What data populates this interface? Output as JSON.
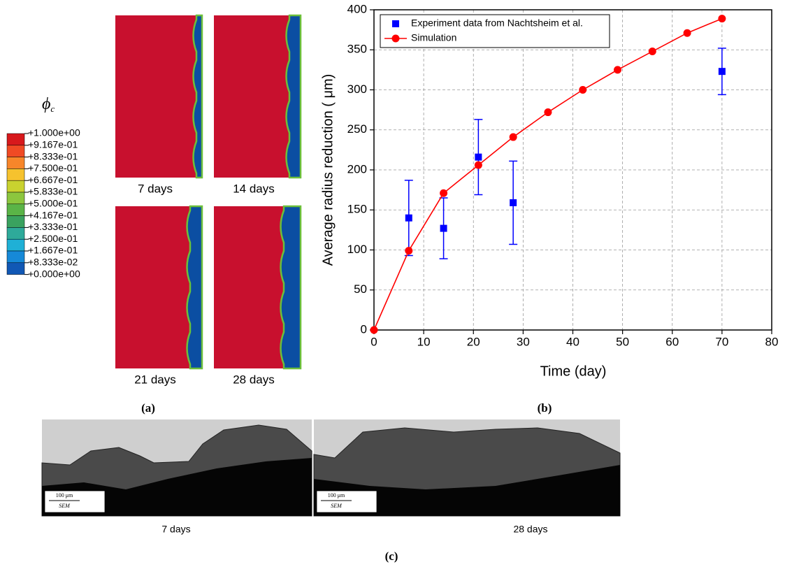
{
  "panel_a": {
    "label": "(a)",
    "legend_title": {
      "symbol": "ϕ",
      "subscript": "c"
    },
    "legend_labels": [
      "+1.000e+00",
      "+9.167e-01",
      "+8.333e-01",
      "+7.500e-01",
      "+6.667e-01",
      "+5.833e-01",
      "+5.000e-01",
      "+4.167e-01",
      "+3.333e-01",
      "+2.500e-01",
      "+1.667e-01",
      "+8.333e-02",
      "+0.000e+00"
    ],
    "legend_colors": [
      "#d7191c",
      "#f04a24",
      "#f7862a",
      "#f6c22e",
      "#c9d22f",
      "#8cc63e",
      "#5ab447",
      "#3aa25f",
      "#2eaa9a",
      "#1fb0d6",
      "#1689d8",
      "#1158b5"
    ],
    "images": [
      {
        "caption": "7 days"
      },
      {
        "caption": "14 days"
      },
      {
        "caption": "21 days"
      },
      {
        "caption": "28 days"
      }
    ]
  },
  "chart_data": {
    "type": "line",
    "label": "(b)",
    "x_label": "Time (day)",
    "y_label": "Average radius reduction ( μm)",
    "xlim": [
      0,
      80
    ],
    "xticks": [
      0,
      10,
      20,
      30,
      40,
      50,
      60,
      70,
      80
    ],
    "ylim": [
      0,
      400
    ],
    "yticks": [
      0,
      50,
      100,
      150,
      200,
      250,
      300,
      350,
      400
    ],
    "grid": true,
    "legend": "upper left",
    "series": [
      {
        "name": "Experiment data from Nachtsheim et al.",
        "color": "#0000ff",
        "mode": "markers",
        "x": [
          7,
          14,
          21,
          28,
          70
        ],
        "values": [
          140,
          127,
          216,
          159,
          323
        ],
        "errors": [
          47,
          38,
          47,
          52,
          29
        ]
      },
      {
        "name": "Simulation",
        "color": "#ff0000",
        "mode": "lines+markers",
        "x": [
          0,
          7,
          14,
          21,
          28,
          35,
          42,
          49,
          56,
          63,
          70
        ],
        "values": [
          0,
          99,
          171,
          206,
          241,
          272,
          300,
          325,
          348,
          371,
          389
        ]
      }
    ]
  },
  "panel_c": {
    "label": "(c)",
    "images": [
      {
        "caption": "7 days",
        "scale_label": "100 μm",
        "scale_caption": "SEM"
      },
      {
        "caption": "28 days",
        "scale_label": "100 μm",
        "scale_caption": "SEM"
      }
    ]
  }
}
